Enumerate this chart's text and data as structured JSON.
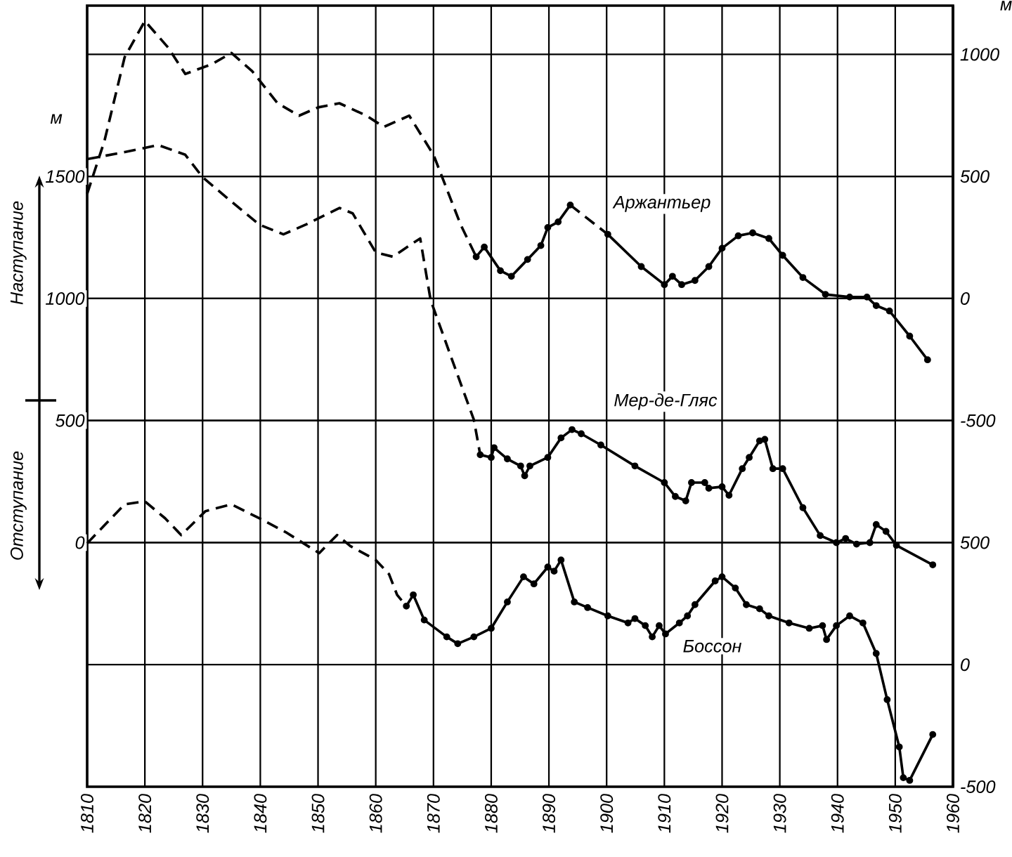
{
  "chart_data": {
    "type": "line",
    "ylabel": "м",
    "y2label": "м",
    "annotations": [
      "Наступание",
      "Отступание"
    ],
    "xlim": [
      1810,
      1960
    ],
    "xticks": [
      1810,
      1820,
      1830,
      1840,
      1850,
      1860,
      1870,
      1880,
      1890,
      1900,
      1910,
      1920,
      1930,
      1940,
      1950,
      1960
    ],
    "ylim": [
      -1000,
      2200
    ],
    "yticks": [
      0,
      500,
      1000,
      1500
    ],
    "y2lim": [
      -2000,
      1200
    ],
    "y2ticks": [
      -500,
      0,
      500,
      1000
    ],
    "y3lim": [
      -500,
      2700
    ],
    "y3ticks": [
      -500,
      0,
      500
    ],
    "grid": true,
    "series": [
      {
        "axis": "y2",
        "color": "#000000",
        "line_style": "dashed",
        "x": [
          1810,
          1813,
          1816.5,
          1820,
          1824,
          1827,
          1831.6,
          1835,
          1838.6,
          1843,
          1846.7,
          1850,
          1853.7,
          1858.4,
          1861.4,
          1865.8,
          1870,
          1874.7,
          1877.4,
          1885,
          1893.7,
          1900.2
        ],
        "values": [
          429,
          646,
          989,
          1137,
          1029,
          920,
          960,
          1006,
          931,
          800,
          749,
          783,
          800,
          749,
          703,
          749,
          589,
          303,
          171,
          null,
          383,
          263
        ]
      },
      {
        "name": "Аржантьер",
        "axis": "y2",
        "color": "#000000",
        "line_style": "solid",
        "marker": "circle",
        "x": [
          1877.4,
          1878.8,
          1881.6,
          1883.5,
          1886.3,
          1888.6,
          1889.8,
          1891.6,
          1893.7,
          1897,
          1900.2,
          1906,
          1910,
          1911.4,
          1913,
          1915.3,
          1917.7,
          1920,
          1922.8,
          1925.3,
          1928.1,
          1930.5,
          1934,
          1937.9,
          1942.1,
          1945.1,
          1946.7,
          1949,
          1952.5,
          1955.6
        ],
        "values": [
          171,
          211,
          114,
          91,
          160,
          217,
          291,
          314,
          383,
          null,
          263,
          131,
          57,
          91,
          57,
          74,
          131,
          206,
          257,
          269,
          246,
          177,
          86,
          17,
          6,
          6,
          -29,
          -51,
          -154,
          -251
        ]
      },
      {
        "axis": "y",
        "color": "#000000",
        "line_style": "dashed",
        "x": [
          1810,
          1816.5,
          1820,
          1822.3,
          1827,
          1830,
          1834,
          1839.8,
          1844,
          1847.9,
          1853.7,
          1856,
          1860,
          1863,
          1865.8,
          1867.7,
          1869.5,
          1873.5,
          1877,
          1878.1
        ],
        "values": [
          1571,
          1600,
          1617,
          1629,
          1589,
          1497,
          1417,
          1303,
          1263,
          1303,
          1371,
          1349,
          1189,
          1171,
          1217,
          1246,
          994,
          731,
          503,
          360
        ]
      },
      {
        "name": "Мер-де-Гляс",
        "axis": "y",
        "color": "#000000",
        "line_style": "solid",
        "marker": "circle",
        "x": [
          1878.1,
          1880,
          1880.5,
          1882.8,
          1885.1,
          1885.8,
          1886.7,
          1889.8,
          1892.1,
          1894,
          1895.6,
          1899,
          1904.9,
          1910,
          1911.9,
          1913.7,
          1914.7,
          1917,
          1917.7,
          1920,
          1921.2,
          1923.5,
          1924.7,
          1926.5,
          1927.4,
          1928.8,
          1930.5,
          1934,
          1937,
          1939.8,
          1941.4,
          1943.3,
          1945.6,
          1946.7,
          1948.4,
          1950.2,
          1956.5
        ],
        "values": [
          360,
          349,
          389,
          343,
          314,
          274,
          314,
          349,
          429,
          463,
          446,
          400,
          314,
          246,
          189,
          171,
          246,
          246,
          223,
          229,
          194,
          303,
          349,
          417,
          423,
          303,
          303,
          143,
          29,
          0,
          17,
          -6,
          0,
          74,
          46,
          -11,
          -91
        ]
      },
      {
        "axis": "y3",
        "color": "#000000",
        "line_style": "dashed",
        "x": [
          1810,
          1813,
          1816.5,
          1820,
          1823.5,
          1826.3,
          1830.5,
          1835,
          1839.8,
          1844.4,
          1850.2,
          1853.3,
          1855.6,
          1860,
          1862.3,
          1863.7,
          1865.3
        ],
        "values": [
          497,
          571,
          657,
          669,
          600,
          531,
          629,
          657,
          600,
          543,
          457,
          531,
          486,
          429,
          371,
          286,
          240
        ]
      },
      {
        "name": "Боссон",
        "axis": "y3",
        "color": "#000000",
        "line_style": "solid",
        "marker": "circle",
        "x": [
          1865.3,
          1866.5,
          1868.4,
          1872.3,
          1874.2,
          1877,
          1880,
          1882.8,
          1885.6,
          1887.4,
          1889.8,
          1890.9,
          1892.1,
          1894.4,
          1896.7,
          1900.2,
          1903.7,
          1904.9,
          1906.7,
          1907.9,
          1909.1,
          1910.2,
          1912.6,
          1914,
          1915.3,
          1918.8,
          1920,
          1922.3,
          1924.2,
          1926.5,
          1928.1,
          1931.6,
          1935.1,
          1937.4,
          1938.1,
          1939.8,
          1942.1,
          1944.4,
          1946.7,
          1948.6,
          1950.7,
          1951.4,
          1952.5,
          1956.5
        ],
        "values": [
          240,
          286,
          183,
          114,
          86,
          114,
          149,
          257,
          360,
          331,
          400,
          383,
          429,
          257,
          234,
          200,
          171,
          189,
          160,
          114,
          160,
          126,
          171,
          200,
          246,
          343,
          360,
          314,
          246,
          229,
          200,
          171,
          149,
          160,
          103,
          160,
          200,
          171,
          46,
          -143,
          -337,
          -463,
          -474,
          -286
        ]
      }
    ]
  }
}
